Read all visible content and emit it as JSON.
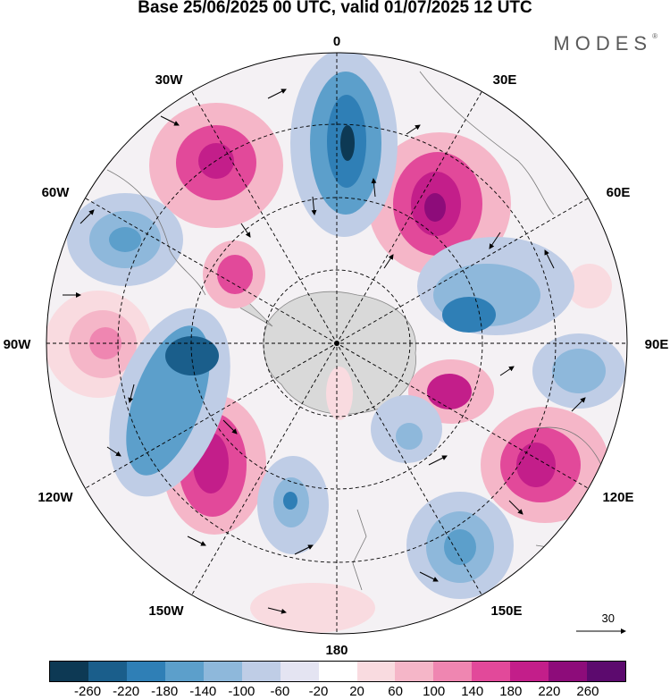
{
  "title": "Base 25/06/2025 00 UTC, valid 01/07/2025 12 UTC",
  "brand": "MODES",
  "brand_mark": "®",
  "longitude_labels": {
    "n": "0",
    "s": "180",
    "w": "90W",
    "e": "90E",
    "nw30": "30W",
    "ne30": "30E",
    "nw60": "60W",
    "ne60": "60E",
    "sw120": "120W",
    "se120": "120E",
    "sw150": "150W",
    "se150": "150E"
  },
  "vector_reference": "30",
  "colorbar": {
    "colors": [
      "#0d3954",
      "#1a5e8b",
      "#2f7fb6",
      "#5c9fcb",
      "#8eb8db",
      "#bfcde6",
      "#e4e4f2",
      "#ffffff",
      "#f9dbe0",
      "#f5b6c8",
      "#ef86b1",
      "#e2499a",
      "#c31e8a",
      "#8d0c7a",
      "#5c0a6e"
    ],
    "ticks": [
      "-260",
      "-220",
      "-180",
      "-140",
      "-100",
      "-60",
      "-20",
      "20",
      "60",
      "100",
      "140",
      "180",
      "220",
      "260"
    ]
  }
}
